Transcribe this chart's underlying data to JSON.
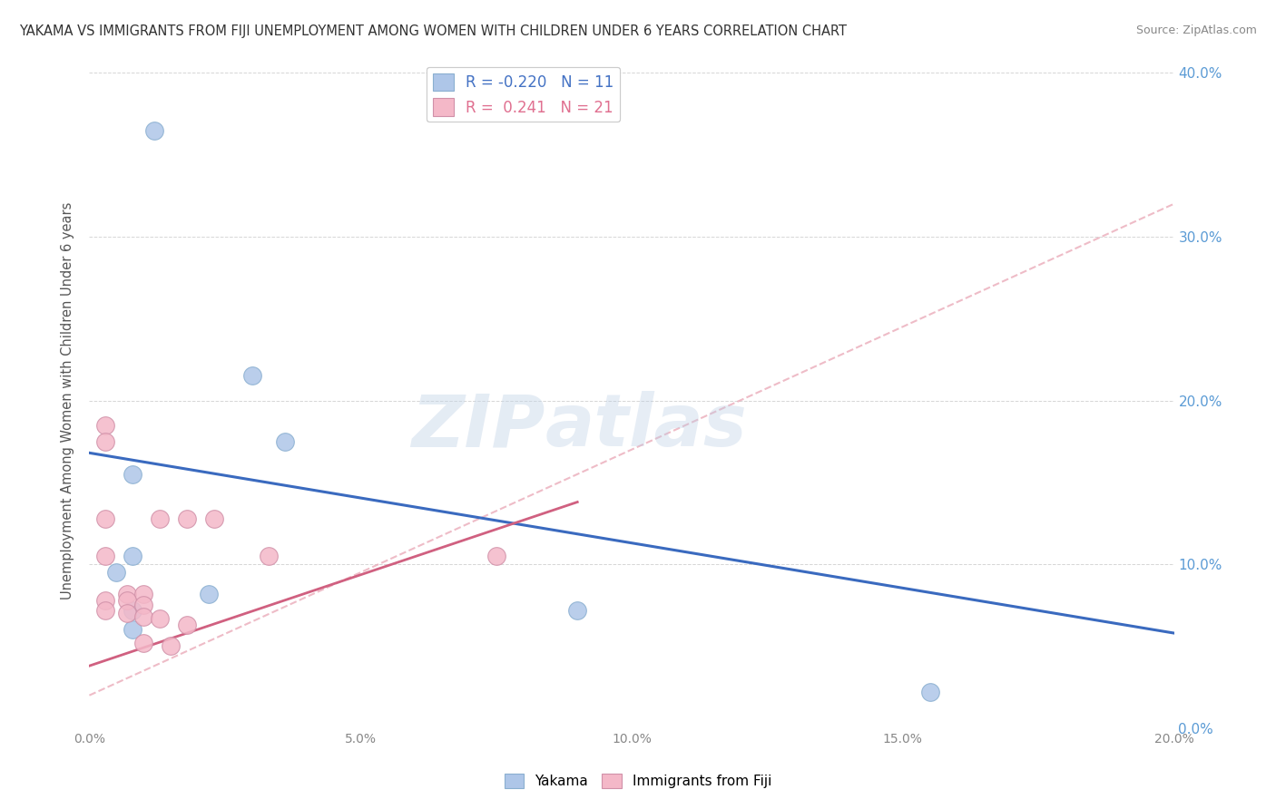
{
  "title": "YAKAMA VS IMMIGRANTS FROM FIJI UNEMPLOYMENT AMONG WOMEN WITH CHILDREN UNDER 6 YEARS CORRELATION CHART",
  "source": "Source: ZipAtlas.com",
  "ylabel": "Unemployment Among Women with Children Under 6 years",
  "xlabel_ticks": [
    "0.0%",
    "",
    "5.0%",
    "",
    "10.0%",
    "",
    "15.0%",
    "",
    "20.0%"
  ],
  "ylabel_ticks": [
    "0.0%",
    "10.0%",
    "20.0%",
    "30.0%",
    "40.0%"
  ],
  "xlim": [
    0.0,
    0.2
  ],
  "ylim": [
    0.0,
    0.4
  ],
  "yakama_points": [
    [
      0.012,
      0.365
    ],
    [
      0.03,
      0.215
    ],
    [
      0.036,
      0.175
    ],
    [
      0.008,
      0.155
    ],
    [
      0.008,
      0.105
    ],
    [
      0.005,
      0.095
    ],
    [
      0.022,
      0.082
    ],
    [
      0.008,
      0.072
    ],
    [
      0.09,
      0.072
    ],
    [
      0.008,
      0.06
    ],
    [
      0.155,
      0.022
    ]
  ],
  "fiji_points": [
    [
      0.003,
      0.185
    ],
    [
      0.003,
      0.175
    ],
    [
      0.003,
      0.128
    ],
    [
      0.013,
      0.128
    ],
    [
      0.018,
      0.128
    ],
    [
      0.023,
      0.128
    ],
    [
      0.003,
      0.105
    ],
    [
      0.007,
      0.082
    ],
    [
      0.01,
      0.082
    ],
    [
      0.003,
      0.078
    ],
    [
      0.007,
      0.078
    ],
    [
      0.01,
      0.075
    ],
    [
      0.033,
      0.105
    ],
    [
      0.075,
      0.105
    ],
    [
      0.003,
      0.072
    ],
    [
      0.007,
      0.07
    ],
    [
      0.01,
      0.068
    ],
    [
      0.013,
      0.067
    ],
    [
      0.018,
      0.063
    ],
    [
      0.01,
      0.052
    ],
    [
      0.015,
      0.05
    ]
  ],
  "yakama_R": -0.22,
  "yakama_N": 11,
  "fiji_R": 0.241,
  "fiji_N": 21,
  "yakama_color": "#aec6e8",
  "fiji_color": "#f4b8c8",
  "yakama_line_color": "#3a6abf",
  "fiji_line_color": "#d06080",
  "fiji_dashed_color": "#e8a0b0",
  "watermark_zip": "ZIP",
  "watermark_atlas": "atlas",
  "background_color": "#ffffff",
  "grid_color": "#cccccc"
}
